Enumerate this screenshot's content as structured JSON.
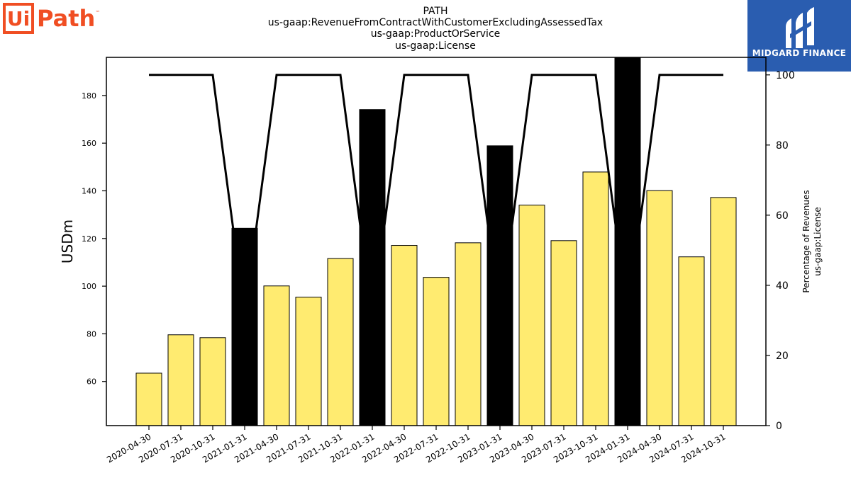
{
  "logos": {
    "left": {
      "box_text": "Ui",
      "rest_text": "Path",
      "tm": "™"
    },
    "right": {
      "text": "MIDGARD FINANCE"
    }
  },
  "chart_data": {
    "type": "bar",
    "title_lines": [
      "PATH",
      "us-gaap:RevenueFromContractWithCustomerExcludingAssessedTax",
      "us-gaap:ProductOrService",
      "us-gaap:License"
    ],
    "ylabel": "USDm",
    "y2label_lines": [
      "Percentage of Revenues",
      "us-gaap:License"
    ],
    "categories": [
      "2020-04-30",
      "2020-07-31",
      "2020-10-31",
      "2021-01-31",
      "2021-04-30",
      "2021-07-31",
      "2021-10-31",
      "2022-01-31",
      "2022-04-30",
      "2022-07-31",
      "2022-10-31",
      "2023-01-31",
      "2023-04-30",
      "2023-07-31",
      "2023-10-31",
      "2024-01-31",
      "2024-04-30",
      "2024-07-31",
      "2024-10-31"
    ],
    "series": [
      {
        "values": [
          63.5,
          79.6,
          78.4,
          124.3,
          100.1,
          95.4,
          111.6,
          174.1,
          117.1,
          103.7,
          118.2,
          158.9,
          134.0,
          119.1,
          147.9,
          195.7,
          140.1,
          112.3,
          137.2
        ],
        "highlight_indices": [
          3,
          7,
          11,
          15
        ]
      },
      {
        "axis": "right",
        "type": "line",
        "values": [
          100,
          100,
          100,
          31.5,
          100,
          100,
          100,
          30.8,
          100,
          100,
          100,
          31.0,
          100,
          100,
          100,
          31.2,
          100,
          100,
          100
        ]
      }
    ],
    "ylim": [
      41.5,
      196
    ],
    "yticks": [
      60,
      80,
      100,
      120,
      140,
      160,
      180
    ],
    "y2lim": [
      0,
      105
    ],
    "y2ticks": [
      0,
      20,
      40,
      60,
      80,
      100
    ],
    "colors": {
      "bar": "#ffeb70",
      "highlight": "#000000",
      "line": "#000000",
      "edge": "#000000"
    },
    "grid": false
  }
}
